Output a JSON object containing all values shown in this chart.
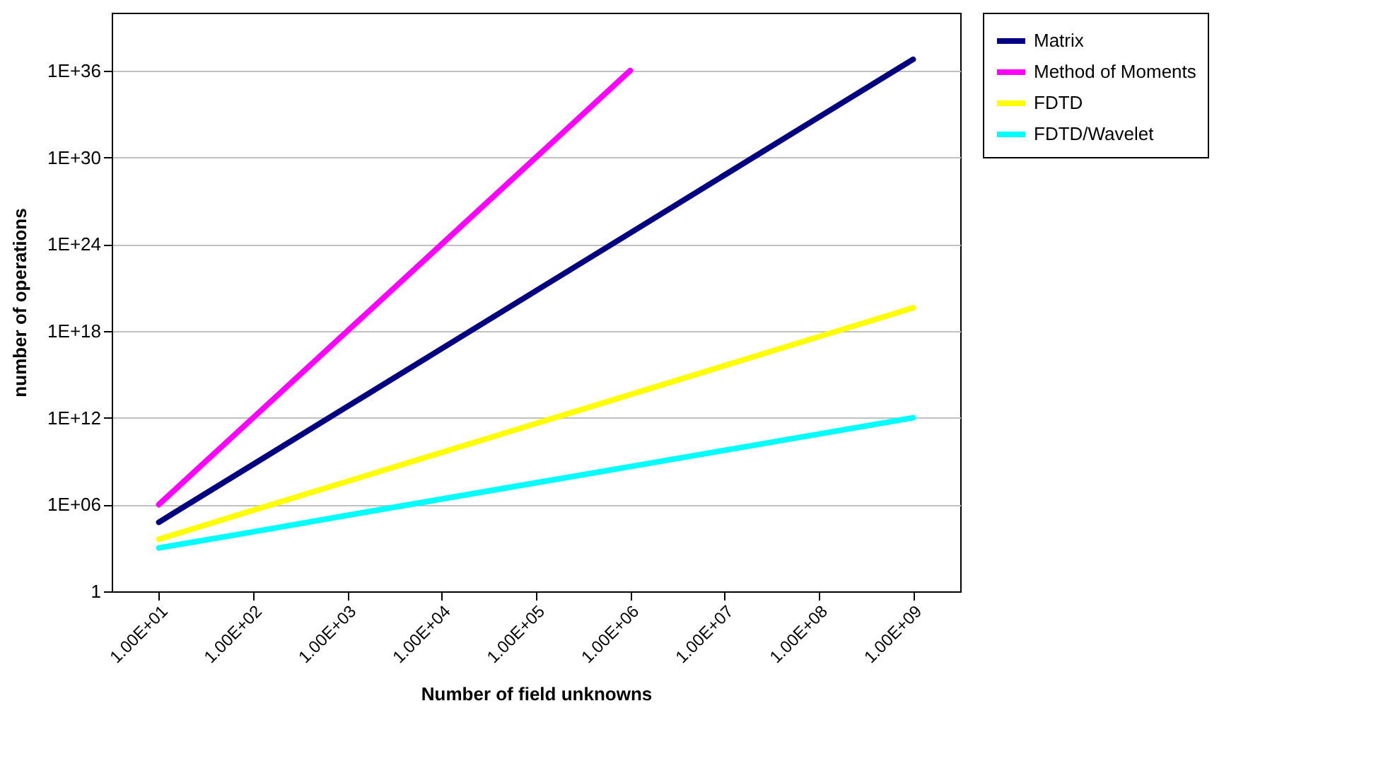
{
  "chart_data": {
    "type": "line",
    "xlabel": "Number of field unknowns",
    "ylabel": "number of operations",
    "categories": [
      "1.00E+01",
      "1.00E+02",
      "1.00E+03",
      "1.00E+04",
      "1.00E+05",
      "1.00E+06",
      "1.00E+07",
      "1.00E+08",
      "1.00E+09"
    ],
    "series": [
      {
        "name": "Matrix",
        "color": "#000080",
        "values": [
          60000.0,
          600000000.0,
          6000000000000.0,
          6e+16,
          6e+20,
          6e+24,
          6e+28,
          6e+32,
          6e+36
        ]
      },
      {
        "name": "Method of Moments",
        "color": "#ff00ff",
        "values": [
          1000000.0,
          1000000000000.0,
          1e+18,
          1e+24,
          1e+30,
          1e+36,
          null,
          null,
          null
        ]
      },
      {
        "name": "FDTD",
        "color": "#ffff00",
        "values": [
          4000.0,
          400000.0,
          40000000.0,
          4000000000.0,
          400000000000.0,
          40000000000000.0,
          4000000000000000.0,
          4e+17,
          4e+19
        ]
      },
      {
        "name": "FDTD/Wavelet",
        "color": "#00ffff",
        "values": [
          1000.0,
          13000.0,
          180000.0,
          2400000.0,
          32000000.0,
          420000000.0,
          5600000000.0,
          75000000000.0,
          1000000000000.0
        ]
      }
    ],
    "log": "y",
    "ylim": [
      1,
      1e+40
    ],
    "yticks": [
      1,
      {
        "value": 1000000.0,
        "label": "1E+06"
      },
      {
        "value": 1000000000000.0,
        "label": "1E+12"
      },
      {
        "value": 1e+18,
        "label": "1E+18"
      },
      {
        "value": 1e+24,
        "label": "1E+24"
      },
      {
        "value": 1e+30,
        "label": "1E+30"
      },
      {
        "value": 1e+36,
        "label": "1E+36"
      }
    ],
    "grid": "y",
    "legend": "right",
    "marker": "none",
    "line_style": "solid"
  }
}
